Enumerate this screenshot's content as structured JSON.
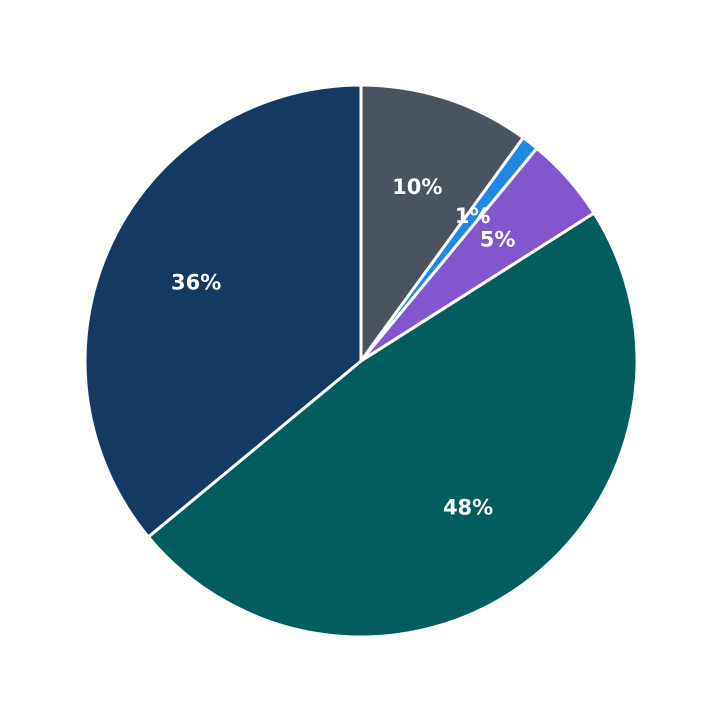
{
  "chart_data": {
    "type": "pie",
    "values": [
      10,
      1,
      5,
      48,
      36
    ],
    "value_labels": [
      "10%",
      "1%",
      "5%",
      "48%",
      "36%"
    ],
    "colors": [
      "#4a5461",
      "#1e88e5",
      "#8456ce",
      "#025e5e",
      "#143962"
    ]
  }
}
